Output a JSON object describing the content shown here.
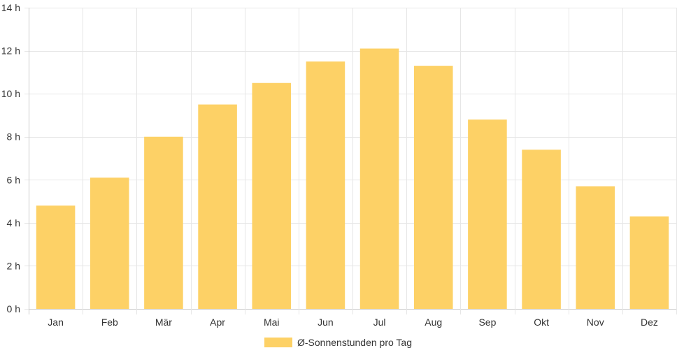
{
  "chart_data": {
    "type": "bar",
    "categories": [
      "Jan",
      "Feb",
      "Mär",
      "Apr",
      "Mai",
      "Jun",
      "Jul",
      "Aug",
      "Sep",
      "Okt",
      "Nov",
      "Dez"
    ],
    "series": [
      {
        "name": "Ø-Sonnenstunden pro Tag",
        "values": [
          4.8,
          6.1,
          8.0,
          9.5,
          10.5,
          11.5,
          12.1,
          11.3,
          8.8,
          7.4,
          5.7,
          4.3
        ],
        "color": "#fdd166"
      }
    ],
    "y_ticks": [
      "0 h",
      "2 h",
      "4 h",
      "6 h",
      "8 h",
      "10 h",
      "12 h",
      "14 h"
    ],
    "ylim": [
      0,
      14
    ],
    "y_unit": "h",
    "grid": true,
    "legend_position": "bottom"
  }
}
